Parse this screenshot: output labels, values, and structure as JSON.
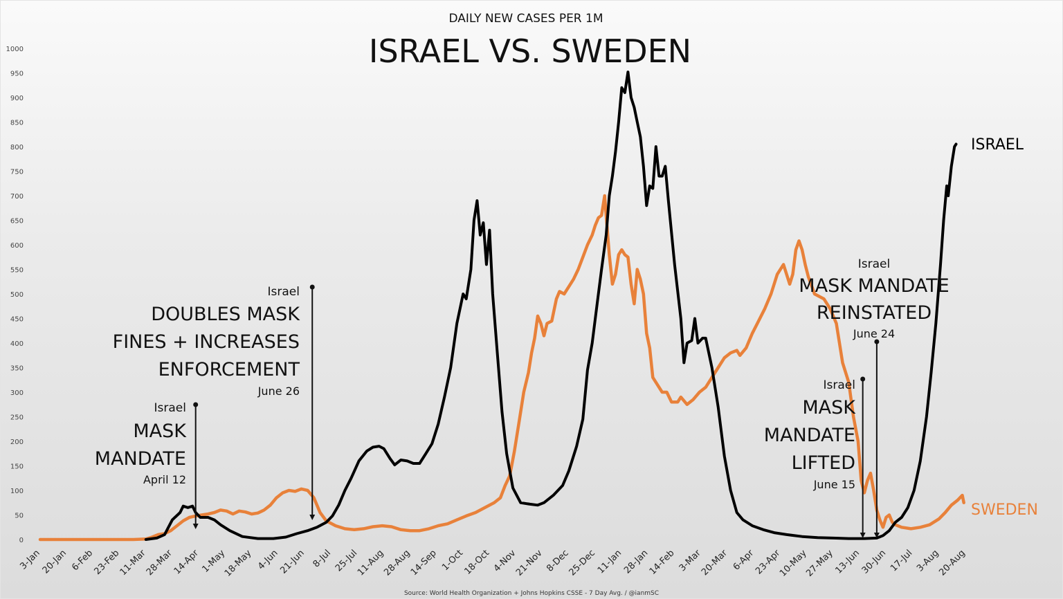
{
  "chart_data": {
    "type": "line",
    "subtitle": "DAILY NEW CASES PER 1M",
    "title": "ISRAEL VS. SWEDEN",
    "xlabel": "",
    "ylabel": "",
    "ylim": [
      0,
      1000
    ],
    "yticks": [
      0,
      50,
      100,
      150,
      200,
      250,
      300,
      350,
      400,
      450,
      500,
      550,
      600,
      650,
      700,
      750,
      800,
      850,
      900,
      950,
      1000
    ],
    "x_unit": "days since 3-Jan-2020",
    "xlim": [
      0,
      604
    ],
    "xticks": [
      "3-Jan",
      "20-Jan",
      "6-Feb",
      "23-Feb",
      "11-Mar",
      "28-Mar",
      "14-Apr",
      "1-May",
      "18-May",
      "4-Jun",
      "21-Jun",
      "8-Jul",
      "25-Jul",
      "11-Aug",
      "28-Aug",
      "14-Sep",
      "1-Oct",
      "18-Oct",
      "4-Nov",
      "21-Nov",
      "8-Dec",
      "25-Dec",
      "11-Jan",
      "28-Jan",
      "14-Feb",
      "3-Mar",
      "20-Mar",
      "6-Apr",
      "23-Apr",
      "10-May",
      "27-May",
      "13-Jun",
      "30-Jun",
      "17-Jul",
      "3-Aug",
      "20-Aug"
    ],
    "xtick_step_days": 17,
    "grid": false,
    "legend": "end-of-line labels",
    "series": [
      {
        "name": "ISRAEL",
        "end_label": "ISRAEL",
        "color": "#000000",
        "points": [
          [
            68,
            0
          ],
          [
            75,
            3
          ],
          [
            80,
            10
          ],
          [
            85,
            40
          ],
          [
            90,
            55
          ],
          [
            92,
            68
          ],
          [
            95,
            65
          ],
          [
            98,
            68
          ],
          [
            100,
            55
          ],
          [
            103,
            45
          ],
          [
            108,
            45
          ],
          [
            112,
            40
          ],
          [
            116,
            30
          ],
          [
            122,
            18
          ],
          [
            130,
            6
          ],
          [
            140,
            2
          ],
          [
            150,
            2
          ],
          [
            158,
            5
          ],
          [
            165,
            12
          ],
          [
            172,
            18
          ],
          [
            178,
            25
          ],
          [
            184,
            35
          ],
          [
            188,
            48
          ],
          [
            192,
            70
          ],
          [
            196,
            100
          ],
          [
            200,
            125
          ],
          [
            205,
            160
          ],
          [
            210,
            180
          ],
          [
            214,
            188
          ],
          [
            218,
            190
          ],
          [
            221,
            185
          ],
          [
            225,
            165
          ],
          [
            228,
            152
          ],
          [
            232,
            162
          ],
          [
            236,
            160
          ],
          [
            240,
            155
          ],
          [
            244,
            155
          ],
          [
            248,
            175
          ],
          [
            252,
            195
          ],
          [
            256,
            235
          ],
          [
            260,
            290
          ],
          [
            264,
            350
          ],
          [
            268,
            440
          ],
          [
            272,
            500
          ],
          [
            274,
            490
          ],
          [
            277,
            550
          ],
          [
            279,
            650
          ],
          [
            281,
            690
          ],
          [
            283,
            620
          ],
          [
            285,
            645
          ],
          [
            287,
            560
          ],
          [
            289,
            630
          ],
          [
            291,
            500
          ],
          [
            294,
            380
          ],
          [
            297,
            260
          ],
          [
            300,
            175
          ],
          [
            304,
            105
          ],
          [
            309,
            75
          ],
          [
            315,
            72
          ],
          [
            320,
            70
          ],
          [
            324,
            75
          ],
          [
            330,
            90
          ],
          [
            336,
            110
          ],
          [
            340,
            140
          ],
          [
            345,
            190
          ],
          [
            349,
            245
          ],
          [
            352,
            345
          ],
          [
            355,
            400
          ],
          [
            358,
            475
          ],
          [
            361,
            550
          ],
          [
            364,
            620
          ],
          [
            366,
            700
          ],
          [
            368,
            740
          ],
          [
            370,
            790
          ],
          [
            372,
            850
          ],
          [
            374,
            920
          ],
          [
            376,
            910
          ],
          [
            378,
            952
          ],
          [
            380,
            900
          ],
          [
            382,
            880
          ],
          [
            384,
            850
          ],
          [
            386,
            820
          ],
          [
            388,
            760
          ],
          [
            390,
            680
          ],
          [
            392,
            720
          ],
          [
            394,
            715
          ],
          [
            396,
            800
          ],
          [
            398,
            740
          ],
          [
            400,
            740
          ],
          [
            402,
            760
          ],
          [
            404,
            690
          ],
          [
            408,
            560
          ],
          [
            412,
            450
          ],
          [
            414,
            360
          ],
          [
            416,
            400
          ],
          [
            419,
            405
          ],
          [
            421,
            450
          ],
          [
            423,
            400
          ],
          [
            426,
            410
          ],
          [
            428,
            410
          ],
          [
            432,
            350
          ],
          [
            436,
            270
          ],
          [
            440,
            170
          ],
          [
            444,
            100
          ],
          [
            448,
            55
          ],
          [
            452,
            40
          ],
          [
            458,
            28
          ],
          [
            465,
            20
          ],
          [
            472,
            14
          ],
          [
            480,
            10
          ],
          [
            490,
            6
          ],
          [
            500,
            4
          ],
          [
            510,
            3
          ],
          [
            520,
            2
          ],
          [
            530,
            2
          ],
          [
            538,
            3
          ],
          [
            542,
            8
          ],
          [
            546,
            18
          ],
          [
            550,
            35
          ],
          [
            554,
            45
          ],
          [
            558,
            65
          ],
          [
            562,
            100
          ],
          [
            566,
            160
          ],
          [
            570,
            250
          ],
          [
            573,
            340
          ],
          [
            576,
            440
          ],
          [
            579,
            560
          ],
          [
            581,
            650
          ],
          [
            583,
            720
          ],
          [
            584,
            700
          ],
          [
            586,
            760
          ],
          [
            588,
            800
          ],
          [
            589,
            805
          ]
        ]
      },
      {
        "name": "SWEDEN",
        "end_label": "SWEDEN",
        "color": "#E8813A",
        "points": [
          [
            0,
            0
          ],
          [
            30,
            0
          ],
          [
            60,
            0
          ],
          [
            68,
            1
          ],
          [
            72,
            5
          ],
          [
            76,
            10
          ],
          [
            80,
            12
          ],
          [
            84,
            18
          ],
          [
            88,
            28
          ],
          [
            92,
            38
          ],
          [
            96,
            45
          ],
          [
            100,
            48
          ],
          [
            104,
            50
          ],
          [
            108,
            52
          ],
          [
            112,
            55
          ],
          [
            116,
            60
          ],
          [
            120,
            58
          ],
          [
            124,
            52
          ],
          [
            128,
            58
          ],
          [
            132,
            56
          ],
          [
            136,
            52
          ],
          [
            140,
            54
          ],
          [
            144,
            60
          ],
          [
            148,
            70
          ],
          [
            152,
            85
          ],
          [
            156,
            95
          ],
          [
            160,
            100
          ],
          [
            164,
            98
          ],
          [
            168,
            103
          ],
          [
            172,
            100
          ],
          [
            176,
            85
          ],
          [
            180,
            55
          ],
          [
            184,
            38
          ],
          [
            190,
            28
          ],
          [
            196,
            22
          ],
          [
            202,
            20
          ],
          [
            208,
            22
          ],
          [
            214,
            26
          ],
          [
            220,
            28
          ],
          [
            226,
            26
          ],
          [
            232,
            20
          ],
          [
            238,
            18
          ],
          [
            244,
            18
          ],
          [
            250,
            22
          ],
          [
            256,
            28
          ],
          [
            262,
            32
          ],
          [
            268,
            40
          ],
          [
            274,
            48
          ],
          [
            280,
            55
          ],
          [
            286,
            65
          ],
          [
            292,
            75
          ],
          [
            296,
            85
          ],
          [
            299,
            110
          ],
          [
            302,
            130
          ],
          [
            305,
            180
          ],
          [
            308,
            240
          ],
          [
            311,
            300
          ],
          [
            314,
            340
          ],
          [
            316,
            380
          ],
          [
            318,
            410
          ],
          [
            320,
            455
          ],
          [
            322,
            440
          ],
          [
            324,
            415
          ],
          [
            326,
            440
          ],
          [
            329,
            445
          ],
          [
            332,
            490
          ],
          [
            334,
            505
          ],
          [
            337,
            500
          ],
          [
            340,
            515
          ],
          [
            343,
            530
          ],
          [
            346,
            550
          ],
          [
            349,
            575
          ],
          [
            352,
            600
          ],
          [
            355,
            620
          ],
          [
            357,
            640
          ],
          [
            359,
            655
          ],
          [
            361,
            660
          ],
          [
            363,
            700
          ],
          [
            364,
            660
          ],
          [
            366,
            580
          ],
          [
            368,
            520
          ],
          [
            370,
            540
          ],
          [
            372,
            580
          ],
          [
            374,
            590
          ],
          [
            376,
            580
          ],
          [
            378,
            575
          ],
          [
            380,
            520
          ],
          [
            382,
            480
          ],
          [
            384,
            550
          ],
          [
            386,
            530
          ],
          [
            388,
            500
          ],
          [
            390,
            420
          ],
          [
            392,
            390
          ],
          [
            394,
            330
          ],
          [
            396,
            320
          ],
          [
            400,
            300
          ],
          [
            403,
            300
          ],
          [
            406,
            280
          ],
          [
            410,
            280
          ],
          [
            412,
            290
          ],
          [
            416,
            275
          ],
          [
            420,
            285
          ],
          [
            424,
            300
          ],
          [
            428,
            310
          ],
          [
            432,
            330
          ],
          [
            436,
            350
          ],
          [
            440,
            370
          ],
          [
            444,
            380
          ],
          [
            448,
            385
          ],
          [
            450,
            375
          ],
          [
            454,
            390
          ],
          [
            458,
            420
          ],
          [
            462,
            445
          ],
          [
            466,
            470
          ],
          [
            470,
            500
          ],
          [
            474,
            540
          ],
          [
            478,
            560
          ],
          [
            480,
            540
          ],
          [
            482,
            520
          ],
          [
            484,
            540
          ],
          [
            486,
            590
          ],
          [
            488,
            608
          ],
          [
            490,
            590
          ],
          [
            492,
            560
          ],
          [
            494,
            535
          ],
          [
            498,
            500
          ],
          [
            504,
            490
          ],
          [
            508,
            470
          ],
          [
            512,
            440
          ],
          [
            516,
            360
          ],
          [
            520,
            320
          ],
          [
            523,
            250
          ],
          [
            526,
            200
          ],
          [
            528,
            120
          ],
          [
            530,
            95
          ],
          [
            532,
            120
          ],
          [
            534,
            135
          ],
          [
            536,
            100
          ],
          [
            538,
            60
          ],
          [
            540,
            40
          ],
          [
            542,
            25
          ],
          [
            544,
            45
          ],
          [
            546,
            50
          ],
          [
            548,
            35
          ],
          [
            550,
            30
          ],
          [
            554,
            25
          ],
          [
            560,
            22
          ],
          [
            566,
            25
          ],
          [
            572,
            30
          ],
          [
            578,
            42
          ],
          [
            582,
            55
          ],
          [
            586,
            70
          ],
          [
            590,
            80
          ],
          [
            593,
            90
          ],
          [
            594,
            75
          ]
        ]
      }
    ],
    "annotations": [
      {
        "country": "Israel",
        "lines": [
          "MASK",
          "MANDATE"
        ],
        "date": "April 12",
        "day": 100,
        "arrow": "down"
      },
      {
        "country": "Israel",
        "lines": [
          "DOUBLES MASK",
          "FINES + INCREASES",
          "ENFORCEMENT"
        ],
        "date": "June 26",
        "day": 175,
        "arrow": "down"
      },
      {
        "country": "Israel",
        "lines": [
          "MASK",
          "MANDATE",
          "LIFTED"
        ],
        "date": "June 15",
        "day": 529,
        "arrow": "down"
      },
      {
        "country": "Israel",
        "lines": [
          "MASK MANDATE",
          "REINSTATED"
        ],
        "date": "June 24",
        "day": 538,
        "arrow": "down"
      }
    ],
    "source": "Source: World Health Organization + Johns Hopkins CSSE - 7 Day Avg. / @ianmSC"
  }
}
